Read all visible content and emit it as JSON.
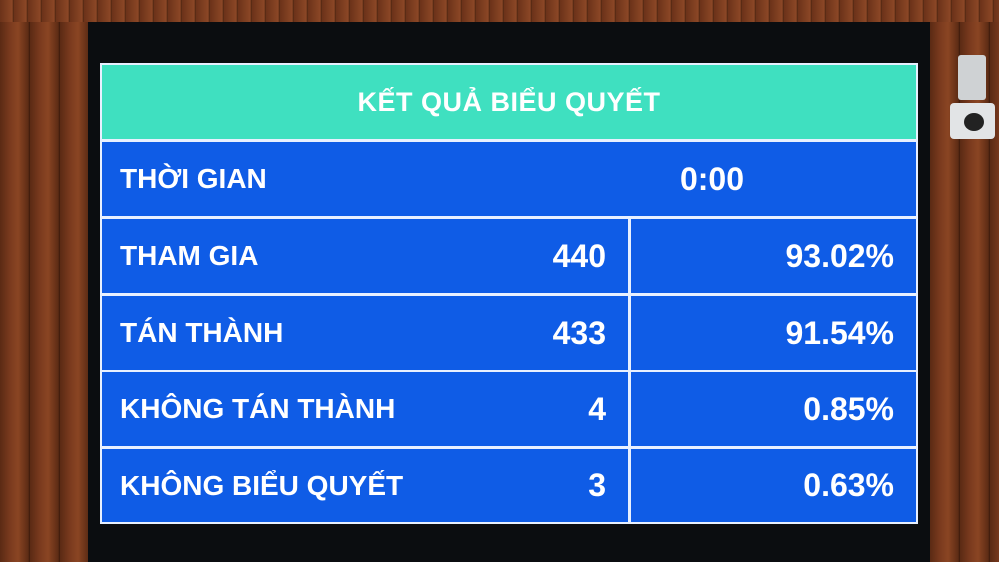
{
  "title": "KẾT QUẢ BIỂU QUYẾT",
  "time": {
    "label": "THỜI GIAN",
    "value": "0:00"
  },
  "rows": [
    {
      "label": "THAM GIA",
      "count": "440",
      "percent": "93.02%"
    },
    {
      "label": "TÁN THÀNH",
      "count": "433",
      "percent": "91.54%"
    },
    {
      "label": "KHÔNG TÁN THÀNH",
      "count": "4",
      "percent": "0.85%"
    },
    {
      "label": "KHÔNG BIỂU QUYẾT",
      "count": "3",
      "percent": "0.63%"
    }
  ],
  "colors": {
    "header": "#3fe0c0",
    "cells": "#0f5ce6",
    "text": "#ffffff"
  }
}
